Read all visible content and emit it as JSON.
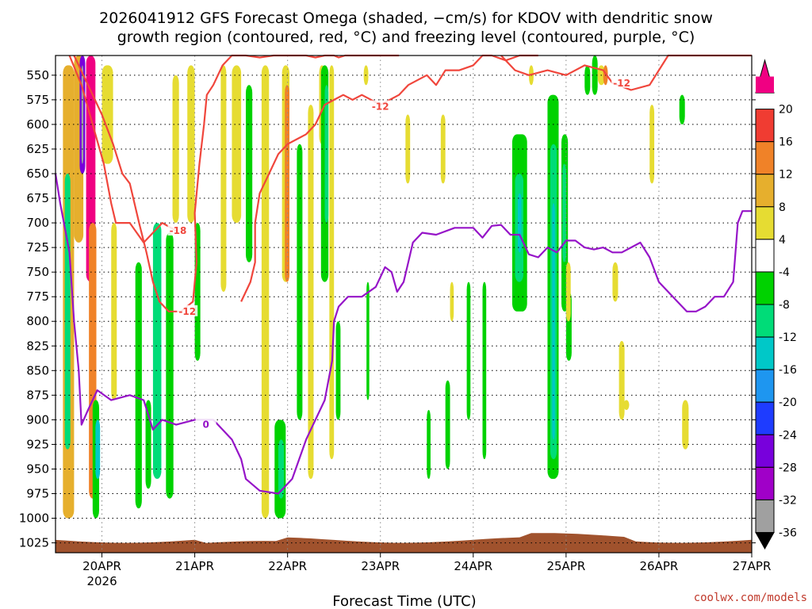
{
  "chart_data": {
    "type": "heatmap",
    "title_line1": "2026041912 GFS Forecast Omega (shaded, −cm/s) for KDOV with dendritic snow",
    "title_line2": "growth region (contoured, red, °C) and freezing level (contoured, purple, °C)",
    "xlabel": "Forecast Time (UTC)",
    "x_ticks": [
      {
        "day": 0.5,
        "label": "20APR",
        "sub": "2026"
      },
      {
        "day": 1.5,
        "label": "21APR",
        "sub": ""
      },
      {
        "day": 2.5,
        "label": "22APR",
        "sub": ""
      },
      {
        "day": 3.5,
        "label": "23APR",
        "sub": ""
      },
      {
        "day": 4.5,
        "label": "24APR",
        "sub": ""
      },
      {
        "day": 5.5,
        "label": "25APR",
        "sub": ""
      },
      {
        "day": 6.5,
        "label": "26APR",
        "sub": ""
      },
      {
        "day": 7.5,
        "label": "27APR",
        "sub": ""
      }
    ],
    "xlim_days": [
      0,
      7.5
    ],
    "y_ticks": [
      550,
      575,
      600,
      625,
      650,
      675,
      700,
      725,
      750,
      775,
      800,
      825,
      850,
      875,
      900,
      925,
      950,
      975,
      1000,
      1025
    ],
    "ylim_hpa": [
      530,
      1035
    ],
    "colorbar": {
      "labels": [
        "20",
        "16",
        "12",
        "8",
        "4",
        "-4",
        "-8",
        "-12",
        "-16",
        "-20",
        "-24",
        "-28",
        "-32",
        "-36"
      ],
      "bins": [
        {
          "color": "#f00082",
          "value": 22
        },
        {
          "color": "#f03c32",
          "value": 18
        },
        {
          "color": "#f08228",
          "value": 14
        },
        {
          "color": "#e6af2d",
          "value": 10
        },
        {
          "color": "#e6dc32",
          "value": 6
        },
        {
          "color": "#ffffff",
          "value": 0
        },
        {
          "color": "#00d200",
          "value": -6
        },
        {
          "color": "#00dc78",
          "value": -10
        },
        {
          "color": "#00c8c8",
          "value": -14
        },
        {
          "color": "#1e96f0",
          "value": -18
        },
        {
          "color": "#1e3cff",
          "value": -22
        },
        {
          "color": "#7800dc",
          "value": -26
        },
        {
          "color": "#a000c8",
          "value": -30
        },
        {
          "color": "#a0a0a0",
          "value": -34
        }
      ]
    },
    "omega_blobs": [
      {
        "d0": 0.08,
        "d1": 0.2,
        "p0": 540,
        "p1": 1000,
        "v": 8
      },
      {
        "d0": 0.1,
        "d1": 0.16,
        "p0": 650,
        "p1": 930,
        "v": -12
      },
      {
        "d0": 0.2,
        "d1": 0.3,
        "p0": 530,
        "p1": 720,
        "v": 10
      },
      {
        "d0": 0.26,
        "d1": 0.32,
        "p0": 530,
        "p1": 650,
        "v": -26
      },
      {
        "d0": 0.28,
        "d1": 0.3,
        "p0": 540,
        "p1": 640,
        "v": -34
      },
      {
        "d0": 0.33,
        "d1": 0.43,
        "p0": 530,
        "p1": 760,
        "v": 22
      },
      {
        "d0": 0.36,
        "d1": 0.44,
        "p0": 700,
        "p1": 980,
        "v": 14
      },
      {
        "d0": 0.4,
        "d1": 0.47,
        "p0": 880,
        "p1": 1000,
        "v": -6
      },
      {
        "d0": 0.43,
        "d1": 0.48,
        "p0": 900,
        "p1": 960,
        "v": -14
      },
      {
        "d0": 0.5,
        "d1": 0.62,
        "p0": 540,
        "p1": 640,
        "v": 6
      },
      {
        "d0": 0.6,
        "d1": 0.66,
        "p0": 700,
        "p1": 880,
        "v": 6
      },
      {
        "d0": 0.86,
        "d1": 0.93,
        "p0": 740,
        "p1": 990,
        "v": -6
      },
      {
        "d0": 0.97,
        "d1": 1.03,
        "p0": 880,
        "p1": 970,
        "v": -6
      },
      {
        "d0": 1.05,
        "d1": 1.14,
        "p0": 700,
        "p1": 960,
        "v": -10
      },
      {
        "d0": 1.19,
        "d1": 1.27,
        "p0": 710,
        "p1": 980,
        "v": -6
      },
      {
        "d0": 1.26,
        "d1": 1.33,
        "p0": 550,
        "p1": 700,
        "v": 6
      },
      {
        "d0": 1.42,
        "d1": 1.5,
        "p0": 540,
        "p1": 700,
        "v": 6
      },
      {
        "d0": 1.5,
        "d1": 1.56,
        "p0": 700,
        "p1": 840,
        "v": -6
      },
      {
        "d0": 1.78,
        "d1": 1.84,
        "p0": 540,
        "p1": 770,
        "v": 6
      },
      {
        "d0": 1.9,
        "d1": 2.0,
        "p0": 540,
        "p1": 700,
        "v": 6
      },
      {
        "d0": 2.05,
        "d1": 2.12,
        "p0": 560,
        "p1": 740,
        "v": -6
      },
      {
        "d0": 2.22,
        "d1": 2.3,
        "p0": 540,
        "p1": 1000,
        "v": 6
      },
      {
        "d0": 2.44,
        "d1": 2.52,
        "p0": 540,
        "p1": 760,
        "v": 6
      },
      {
        "d0": 2.47,
        "d1": 2.52,
        "p0": 560,
        "p1": 760,
        "v": 14
      },
      {
        "d0": 2.36,
        "d1": 2.48,
        "p0": 900,
        "p1": 1000,
        "v": -6
      },
      {
        "d0": 2.4,
        "d1": 2.46,
        "p0": 920,
        "p1": 980,
        "v": -10
      },
      {
        "d0": 2.6,
        "d1": 2.66,
        "p0": 620,
        "p1": 900,
        "v": -6
      },
      {
        "d0": 2.72,
        "d1": 2.78,
        "p0": 580,
        "p1": 960,
        "v": 6
      },
      {
        "d0": 2.84,
        "d1": 2.9,
        "p0": 540,
        "p1": 620,
        "v": 6
      },
      {
        "d0": 2.86,
        "d1": 2.94,
        "p0": 540,
        "p1": 760,
        "v": -6
      },
      {
        "d0": 2.9,
        "d1": 2.94,
        "p0": 560,
        "p1": 700,
        "v": -12
      },
      {
        "d0": 2.95,
        "d1": 3.0,
        "p0": 540,
        "p1": 940,
        "v": 6
      },
      {
        "d0": 3.02,
        "d1": 3.07,
        "p0": 800,
        "p1": 900,
        "v": -6
      },
      {
        "d0": 3.32,
        "d1": 3.37,
        "p0": 540,
        "p1": 560,
        "v": 6
      },
      {
        "d0": 3.35,
        "d1": 3.38,
        "p0": 760,
        "p1": 880,
        "v": -6
      },
      {
        "d0": 3.77,
        "d1": 3.82,
        "p0": 590,
        "p1": 660,
        "v": 6
      },
      {
        "d0": 4.15,
        "d1": 4.2,
        "p0": 590,
        "p1": 660,
        "v": 6
      },
      {
        "d0": 4.0,
        "d1": 4.04,
        "p0": 890,
        "p1": 960,
        "v": -6
      },
      {
        "d0": 4.2,
        "d1": 4.25,
        "p0": 860,
        "p1": 950,
        "v": -6
      },
      {
        "d0": 4.25,
        "d1": 4.29,
        "p0": 760,
        "p1": 800,
        "v": 6
      },
      {
        "d0": 4.43,
        "d1": 4.47,
        "p0": 760,
        "p1": 900,
        "v": -6
      },
      {
        "d0": 4.6,
        "d1": 4.64,
        "p0": 760,
        "p1": 940,
        "v": -6
      },
      {
        "d0": 4.92,
        "d1": 5.08,
        "p0": 610,
        "p1": 790,
        "v": -6
      },
      {
        "d0": 4.95,
        "d1": 5.04,
        "p0": 650,
        "p1": 760,
        "v": -10
      },
      {
        "d0": 4.98,
        "d1": 5.02,
        "p0": 670,
        "p1": 730,
        "v": -14
      },
      {
        "d0": 5.1,
        "d1": 5.15,
        "p0": 540,
        "p1": 560,
        "v": 6
      },
      {
        "d0": 5.3,
        "d1": 5.42,
        "p0": 570,
        "p1": 960,
        "v": -6
      },
      {
        "d0": 5.33,
        "d1": 5.4,
        "p0": 620,
        "p1": 940,
        "v": -10
      },
      {
        "d0": 5.35,
        "d1": 5.38,
        "p0": 680,
        "p1": 920,
        "v": -14
      },
      {
        "d0": 5.45,
        "d1": 5.52,
        "p0": 610,
        "p1": 790,
        "v": -6
      },
      {
        "d0": 5.46,
        "d1": 5.5,
        "p0": 640,
        "p1": 740,
        "v": -10
      },
      {
        "d0": 5.5,
        "d1": 5.56,
        "p0": 770,
        "p1": 840,
        "v": -6
      },
      {
        "d0": 5.5,
        "d1": 5.55,
        "p0": 740,
        "p1": 800,
        "v": 6
      },
      {
        "d0": 5.7,
        "d1": 5.76,
        "p0": 540,
        "p1": 570,
        "v": -6
      },
      {
        "d0": 5.78,
        "d1": 5.84,
        "p0": 530,
        "p1": 570,
        "v": -6
      },
      {
        "d0": 5.84,
        "d1": 5.92,
        "p0": 540,
        "p1": 560,
        "v": 6
      },
      {
        "d0": 5.9,
        "d1": 5.95,
        "p0": 540,
        "p1": 560,
        "v": 14
      },
      {
        "d0": 6.0,
        "d1": 6.06,
        "p0": 740,
        "p1": 780,
        "v": 6
      },
      {
        "d0": 6.07,
        "d1": 6.13,
        "p0": 820,
        "p1": 900,
        "v": 6
      },
      {
        "d0": 6.12,
        "d1": 6.18,
        "p0": 880,
        "p1": 890,
        "v": 6
      },
      {
        "d0": 6.4,
        "d1": 6.45,
        "p0": 580,
        "p1": 660,
        "v": 6
      },
      {
        "d0": 6.72,
        "d1": 6.78,
        "p0": 570,
        "p1": 600,
        "v": -6
      },
      {
        "d0": 6.75,
        "d1": 6.82,
        "p0": 880,
        "p1": 930,
        "v": 6
      }
    ],
    "red_contours": [
      {
        "label": "-18",
        "label_day": 1.32,
        "label_p": 708,
        "points": [
          [
            0.15,
            530
          ],
          [
            0.28,
            560
          ],
          [
            0.4,
            600
          ],
          [
            0.52,
            640
          ],
          [
            0.6,
            680
          ],
          [
            0.65,
            700
          ],
          [
            0.8,
            700
          ],
          [
            0.95,
            720
          ],
          [
            1.05,
            710
          ],
          [
            1.15,
            700
          ],
          [
            1.3,
            708
          ]
        ]
      },
      {
        "label": "-12",
        "label_day": 1.42,
        "label_p": 790,
        "points": [
          [
            0.2,
            530
          ],
          [
            0.35,
            560
          ],
          [
            0.5,
            590
          ],
          [
            0.62,
            620
          ],
          [
            0.72,
            650
          ],
          [
            0.8,
            660
          ],
          [
            0.9,
            700
          ],
          [
            0.98,
            730
          ],
          [
            1.05,
            760
          ],
          [
            1.12,
            780
          ],
          [
            1.22,
            790
          ],
          [
            1.35,
            790
          ],
          [
            1.48,
            780
          ],
          [
            1.52,
            740
          ],
          [
            1.5,
            690
          ],
          [
            1.55,
            640
          ],
          [
            1.6,
            600
          ],
          [
            1.63,
            570
          ],
          [
            1.7,
            560
          ],
          [
            1.8,
            540
          ],
          [
            1.9,
            530
          ],
          [
            2.05,
            528
          ],
          [
            2.2,
            532
          ],
          [
            2.35,
            530
          ],
          [
            2.45,
            526
          ],
          [
            2.6,
            528
          ],
          [
            2.7,
            526
          ],
          [
            2.8,
            532
          ],
          [
            2.9,
            526
          ],
          [
            3.0,
            528
          ],
          [
            3.05,
            532
          ],
          [
            3.12,
            526
          ],
          [
            3.2,
            522
          ],
          [
            3.3,
            524
          ],
          [
            3.4,
            520
          ],
          [
            3.5,
            522
          ],
          [
            3.6,
            520
          ],
          [
            3.7,
            518
          ]
        ]
      },
      {
        "label": "-12",
        "label_day": 3.5,
        "label_p": 582,
        "points": [
          [
            2.0,
            780
          ],
          [
            2.1,
            760
          ],
          [
            2.15,
            740
          ],
          [
            2.15,
            700
          ],
          [
            2.2,
            670
          ],
          [
            2.3,
            650
          ],
          [
            2.4,
            630
          ],
          [
            2.5,
            620
          ],
          [
            2.6,
            615
          ],
          [
            2.7,
            610
          ],
          [
            2.8,
            600
          ],
          [
            2.9,
            580
          ],
          [
            3.0,
            575
          ],
          [
            3.1,
            570
          ],
          [
            3.2,
            575
          ],
          [
            3.3,
            570
          ],
          [
            3.5,
            580
          ],
          [
            3.7,
            570
          ],
          [
            3.8,
            560
          ],
          [
            4.0,
            550
          ],
          [
            4.1,
            560
          ],
          [
            4.2,
            545
          ],
          [
            4.35,
            545
          ],
          [
            4.5,
            540
          ],
          [
            4.6,
            530
          ],
          [
            4.7,
            525
          ],
          [
            4.85,
            535
          ],
          [
            5.0,
            530
          ],
          [
            5.2,
            520
          ]
        ]
      },
      {
        "label": "-12",
        "label_day": 6.1,
        "label_p": 558,
        "points": [
          [
            4.8,
            530
          ],
          [
            4.95,
            545
          ],
          [
            5.1,
            550
          ],
          [
            5.3,
            545
          ],
          [
            5.5,
            550
          ],
          [
            5.7,
            540
          ],
          [
            5.9,
            545
          ],
          [
            6.0,
            558
          ],
          [
            6.2,
            565
          ],
          [
            6.4,
            560
          ],
          [
            6.6,
            530
          ],
          [
            6.75,
            520
          ],
          [
            6.85,
            515
          ],
          [
            7.0,
            520
          ],
          [
            7.1,
            525
          ],
          [
            7.3,
            520
          ],
          [
            7.5,
            518
          ]
        ]
      }
    ],
    "purple_contours": [
      {
        "label": "0",
        "label_day": 1.62,
        "label_p": 905,
        "points": [
          [
            0.0,
            650
          ],
          [
            0.05,
            680
          ],
          [
            0.15,
            730
          ],
          [
            0.2,
            800
          ],
          [
            0.25,
            850
          ],
          [
            0.28,
            905
          ],
          [
            0.35,
            890
          ],
          [
            0.45,
            870
          ],
          [
            0.6,
            880
          ],
          [
            0.8,
            875
          ],
          [
            0.95,
            880
          ],
          [
            1.05,
            910
          ],
          [
            1.15,
            900
          ],
          [
            1.3,
            905
          ],
          [
            1.5,
            900
          ],
          [
            1.7,
            900
          ],
          [
            1.9,
            920
          ],
          [
            2.0,
            940
          ],
          [
            2.05,
            960
          ],
          [
            2.2,
            972
          ],
          [
            2.4,
            975
          ],
          [
            2.55,
            960
          ],
          [
            2.7,
            920
          ],
          [
            2.9,
            880
          ],
          [
            2.98,
            840
          ],
          [
            3.0,
            800
          ],
          [
            3.05,
            785
          ],
          [
            3.15,
            775
          ],
          [
            3.3,
            775
          ],
          [
            3.45,
            765
          ],
          [
            3.55,
            745
          ],
          [
            3.62,
            750
          ],
          [
            3.68,
            770
          ],
          [
            3.75,
            760
          ],
          [
            3.8,
            740
          ],
          [
            3.85,
            720
          ],
          [
            3.95,
            710
          ],
          [
            4.1,
            712
          ],
          [
            4.3,
            705
          ],
          [
            4.5,
            705
          ],
          [
            4.6,
            715
          ],
          [
            4.7,
            703
          ],
          [
            4.8,
            702
          ],
          [
            4.9,
            712
          ],
          [
            5.0,
            712
          ],
          [
            5.1,
            732
          ],
          [
            5.2,
            735
          ],
          [
            5.3,
            725
          ],
          [
            5.4,
            730
          ],
          [
            5.5,
            718
          ],
          [
            5.6,
            718
          ],
          [
            5.7,
            725
          ],
          [
            5.8,
            727
          ],
          [
            5.9,
            725
          ],
          [
            6.0,
            730
          ],
          [
            6.1,
            730
          ],
          [
            6.2,
            725
          ],
          [
            6.3,
            720
          ],
          [
            6.4,
            735
          ],
          [
            6.5,
            760
          ],
          [
            6.6,
            770
          ],
          [
            6.7,
            780
          ],
          [
            6.8,
            790
          ],
          [
            6.9,
            790
          ],
          [
            7.0,
            785
          ],
          [
            7.1,
            775
          ],
          [
            7.2,
            775
          ],
          [
            7.3,
            760
          ],
          [
            7.35,
            700
          ],
          [
            7.4,
            688
          ],
          [
            7.5,
            688
          ]
        ]
      }
    ],
    "terrain_color": "#a0522d",
    "credit": "coolwx.com/models"
  }
}
